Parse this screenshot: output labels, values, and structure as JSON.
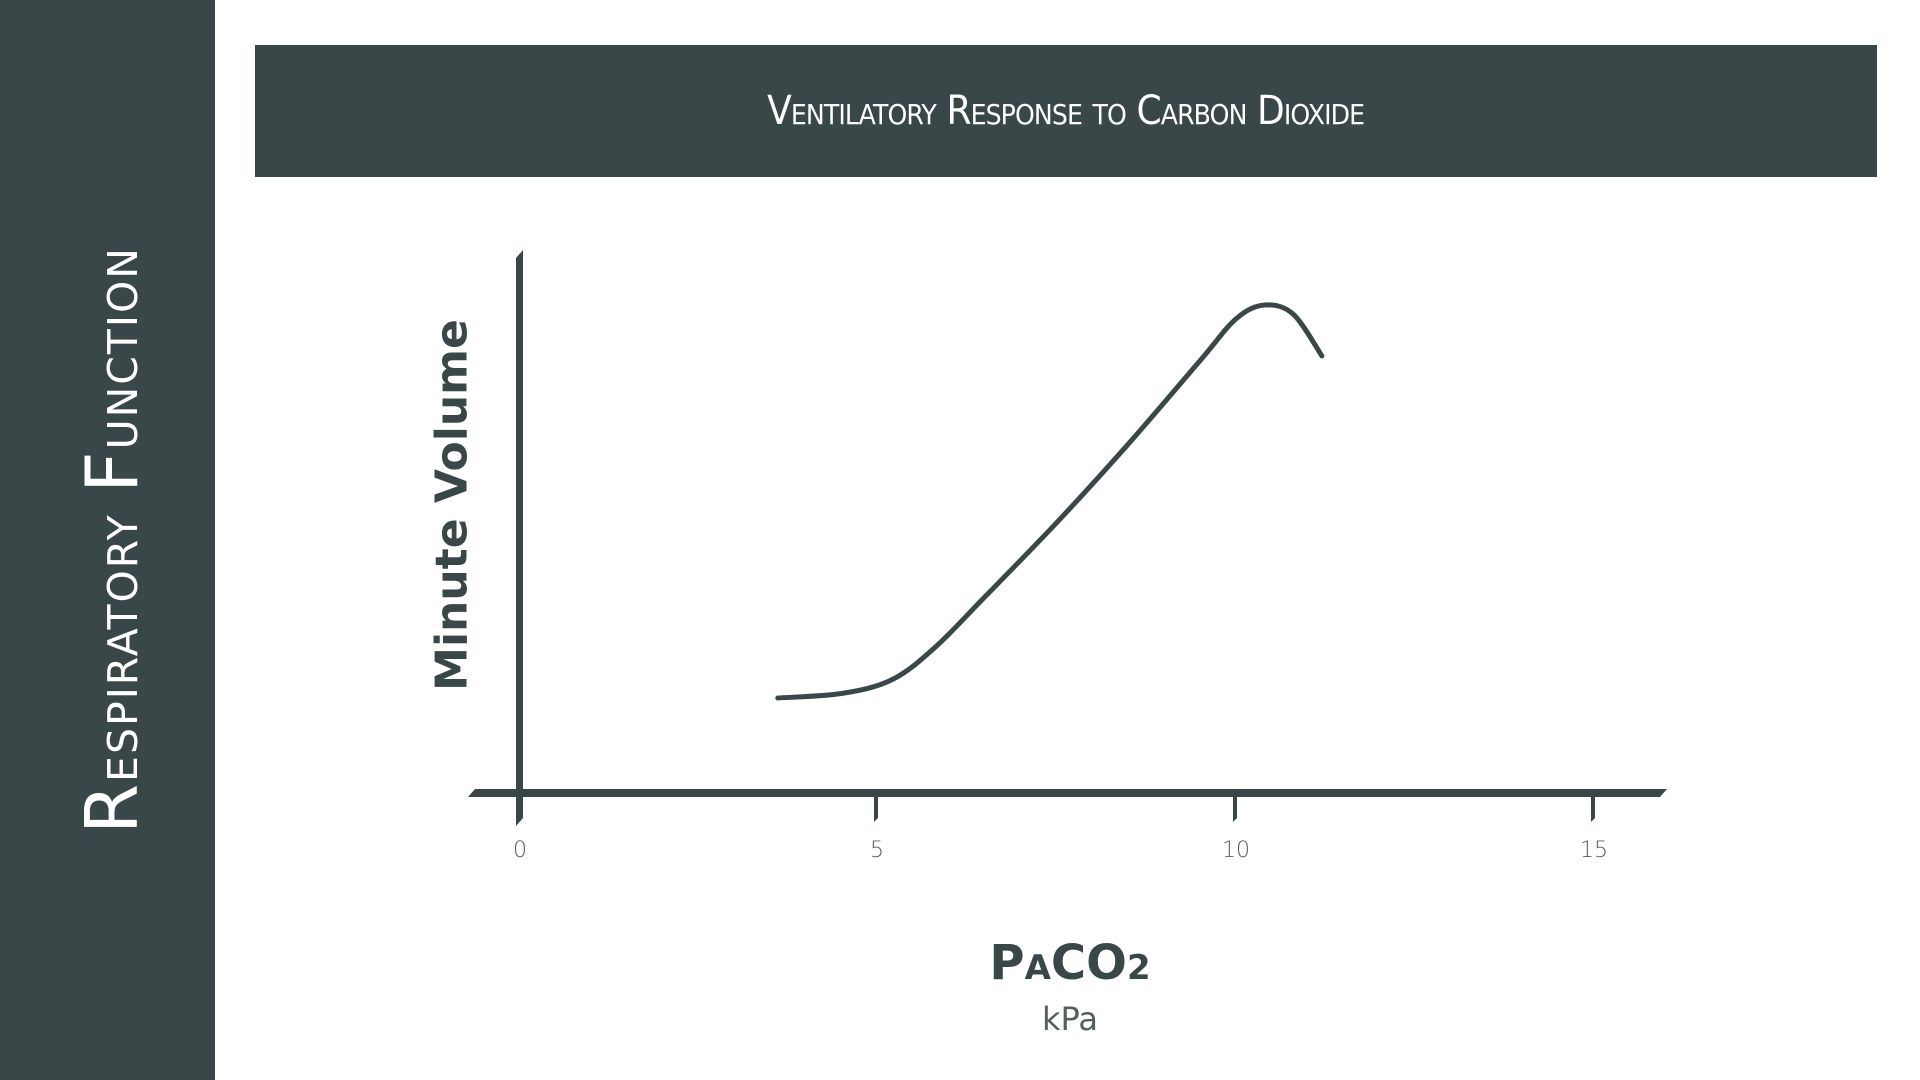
{
  "sidebar": {
    "title_first_initial": "R",
    "title_first_rest": "espiratory",
    "title_second_initial": "F",
    "title_second_rest": "unction"
  },
  "header": {
    "title": "Ventilatory Response to Carbon Dioxide"
  },
  "colors": {
    "panel": "#3a4748",
    "ink": "#3a4748",
    "background": "#ffffff",
    "text_light": "#ffffff"
  },
  "chart_data": {
    "type": "line",
    "title": "Ventilatory Response to Carbon Dioxide",
    "xlabel": "PACO2",
    "xlabel_parts": {
      "main": "P",
      "subscript": "A",
      "rest": "CO",
      "sub2": "2"
    },
    "xunit": "kPa",
    "ylabel": "Minute Volume",
    "xlim": [
      0,
      15.5
    ],
    "xticks": [
      0,
      5,
      10,
      15
    ],
    "xtick_labels": [
      "0",
      "5",
      "10",
      "15"
    ],
    "y_ticks_shown": false,
    "grid": false,
    "legend": null,
    "series": [
      {
        "name": "Minute Volume",
        "x": [
          3.6,
          4.5,
          5.2,
          5.8,
          6.5,
          7.5,
          8.5,
          9.5,
          10.0,
          10.4,
          10.8,
          11.2
        ],
        "y_relative": [
          0.0,
          0.01,
          0.04,
          0.11,
          0.22,
          0.38,
          0.55,
          0.73,
          0.82,
          0.85,
          0.83,
          0.74
        ]
      }
    ]
  }
}
